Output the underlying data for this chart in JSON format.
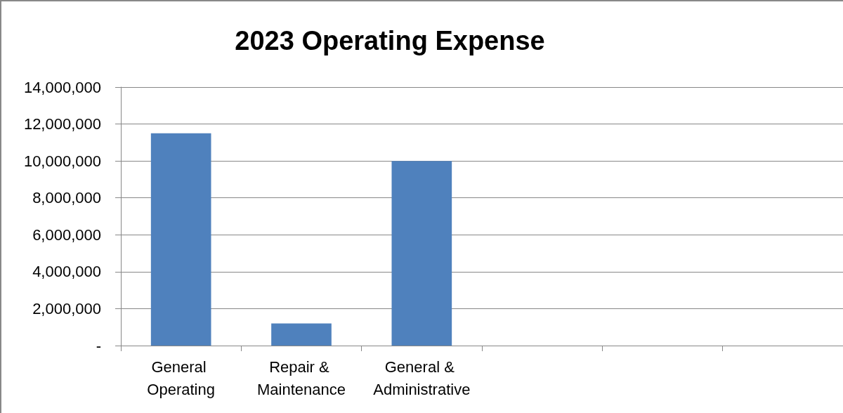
{
  "chart_data": {
    "type": "bar",
    "title": "2023 Operating Expense",
    "categories": [
      "General Operating",
      "Repair & Maintenance",
      "General & Administrative",
      null,
      null,
      null
    ],
    "values": [
      11500000,
      1200000,
      10000000,
      null,
      null,
      null
    ],
    "color": "#4f81bd",
    "ylim": [
      0,
      14000000
    ],
    "yticks": [
      {
        "value": 0,
        "label": "-"
      },
      {
        "value": 2000000,
        "label": "2,000,000"
      },
      {
        "value": 4000000,
        "label": "4,000,000"
      },
      {
        "value": 6000000,
        "label": "6,000,000"
      },
      {
        "value": 8000000,
        "label": "8,000,000"
      },
      {
        "value": 10000000,
        "label": "10,000,000"
      },
      {
        "value": 12000000,
        "label": "12,000,000"
      },
      {
        "value": 14000000,
        "label": "14,000,000"
      }
    ],
    "grid": "y"
  }
}
